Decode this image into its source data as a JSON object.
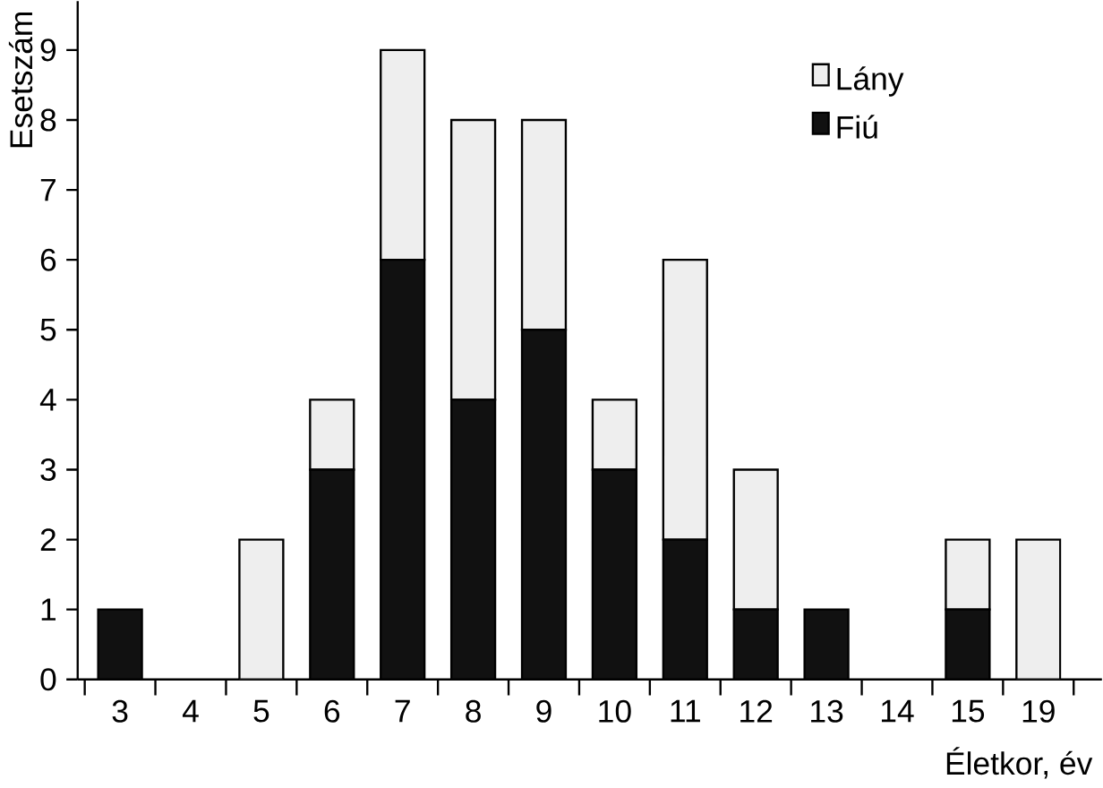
{
  "chart_data": {
    "type": "bar",
    "stacked": true,
    "xlabel": "Életkor, év",
    "ylabel": "Esetszám",
    "categories": [
      "3",
      "4",
      "5",
      "6",
      "7",
      "8",
      "9",
      "10",
      "11",
      "12",
      "13",
      "14",
      "15",
      "19"
    ],
    "series": [
      {
        "name": "Fiú",
        "color": "#111111",
        "values": [
          1,
          0,
          0,
          3,
          6,
          4,
          5,
          3,
          2,
          1,
          1,
          0,
          1,
          0
        ]
      },
      {
        "name": "Lány",
        "color": "#eeeeee",
        "values": [
          0,
          0,
          2,
          1,
          3,
          4,
          3,
          1,
          4,
          2,
          0,
          0,
          1,
          2
        ]
      }
    ],
    "ylim": [
      0,
      9.7
    ],
    "yticks": [
      0,
      1,
      2,
      3,
      4,
      5,
      6,
      7,
      8,
      9
    ],
    "legend": "top right",
    "grid": false
  }
}
